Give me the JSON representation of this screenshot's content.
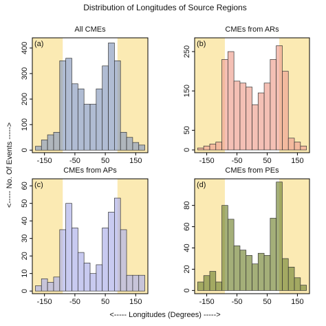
{
  "title": "Distribution of Longitudes of Source Regions",
  "ylabel": "<----- No. Of Events ----->",
  "xlabel": "<----- Longitudes (Degrees) ----->",
  "chart_data": [
    {
      "type": "histogram",
      "title": "All CMEs",
      "panel_label": "(a)",
      "bins": [
        -180,
        -160,
        -140,
        -120,
        -100,
        -80,
        -60,
        -40,
        -20,
        0,
        20,
        40,
        60,
        80,
        100,
        120,
        140,
        160,
        180
      ],
      "values": [
        15,
        40,
        60,
        70,
        350,
        360,
        260,
        240,
        180,
        180,
        240,
        330,
        420,
        350,
        70,
        50,
        30,
        20
      ],
      "color": "#8e9fc0",
      "xlim": [
        -190,
        190
      ],
      "ylim": [
        -10,
        440
      ],
      "xticks": [
        -150,
        -50,
        50,
        150
      ],
      "yticks": [
        0,
        100,
        200,
        300,
        400
      ],
      "shaded_regions": [
        [
          -190,
          -90
        ],
        [
          90,
          190
        ]
      ],
      "shade_color": "#fbeab3"
    },
    {
      "type": "histogram",
      "title": "CMEs from ARs",
      "panel_label": "(b)",
      "bins": [
        -180,
        -160,
        -140,
        -120,
        -100,
        -80,
        -60,
        -40,
        -20,
        0,
        20,
        40,
        60,
        80,
        100,
        120,
        140,
        160,
        180
      ],
      "values": [
        5,
        10,
        15,
        20,
        230,
        250,
        175,
        170,
        160,
        115,
        145,
        170,
        230,
        265,
        200,
        30,
        20,
        10
      ],
      "color": "#f0a595",
      "xlim": [
        -190,
        190
      ],
      "ylim": [
        -7,
        285
      ],
      "xticks": [
        -150,
        -50,
        50,
        150
      ],
      "yticks": [
        0,
        50,
        150,
        250
      ],
      "shaded_regions": [
        [
          -190,
          -90
        ],
        [
          90,
          190
        ]
      ],
      "shade_color": "#fbeab3"
    },
    {
      "type": "histogram",
      "title": "CMEs from APs",
      "panel_label": "(c)",
      "bins": [
        -180,
        -160,
        -140,
        -120,
        -100,
        -80,
        -60,
        -40,
        -20,
        0,
        20,
        40,
        60,
        80,
        100,
        120,
        140,
        160,
        180
      ],
      "values": [
        3,
        7,
        5,
        8,
        35,
        50,
        36,
        22,
        16,
        10,
        15,
        36,
        45,
        53,
        35,
        9,
        9,
        9
      ],
      "color": "#b0b4ea",
      "xlim": [
        -190,
        190
      ],
      "ylim": [
        -1.5,
        64
      ],
      "xticks": [
        -150,
        -50,
        50,
        150
      ],
      "yticks": [
        0,
        10,
        20,
        30,
        40,
        50,
        60
      ],
      "shaded_regions": [
        [
          -190,
          -90
        ],
        [
          90,
          190
        ]
      ],
      "shade_color": "#fbeab3"
    },
    {
      "type": "histogram",
      "title": "CMEs from PEs",
      "panel_label": "(d)",
      "bins": [
        -180,
        -160,
        -140,
        -120,
        -100,
        -80,
        -60,
        -40,
        -20,
        0,
        20,
        40,
        60,
        80,
        100,
        120,
        140,
        160,
        180
      ],
      "values": [
        8,
        14,
        18,
        8,
        80,
        67,
        42,
        38,
        33,
        25,
        35,
        33,
        68,
        102,
        30,
        22,
        12,
        5
      ],
      "color": "#7d8d40",
      "xlim": [
        -190,
        190
      ],
      "ylim": [
        -3,
        105
      ],
      "xticks": [
        -150,
        -50,
        50,
        150
      ],
      "yticks": [
        0,
        20,
        40,
        60,
        80
      ],
      "shaded_regions": [
        [
          -190,
          -90
        ],
        [
          90,
          190
        ]
      ],
      "shade_color": "#fbeab3"
    }
  ]
}
